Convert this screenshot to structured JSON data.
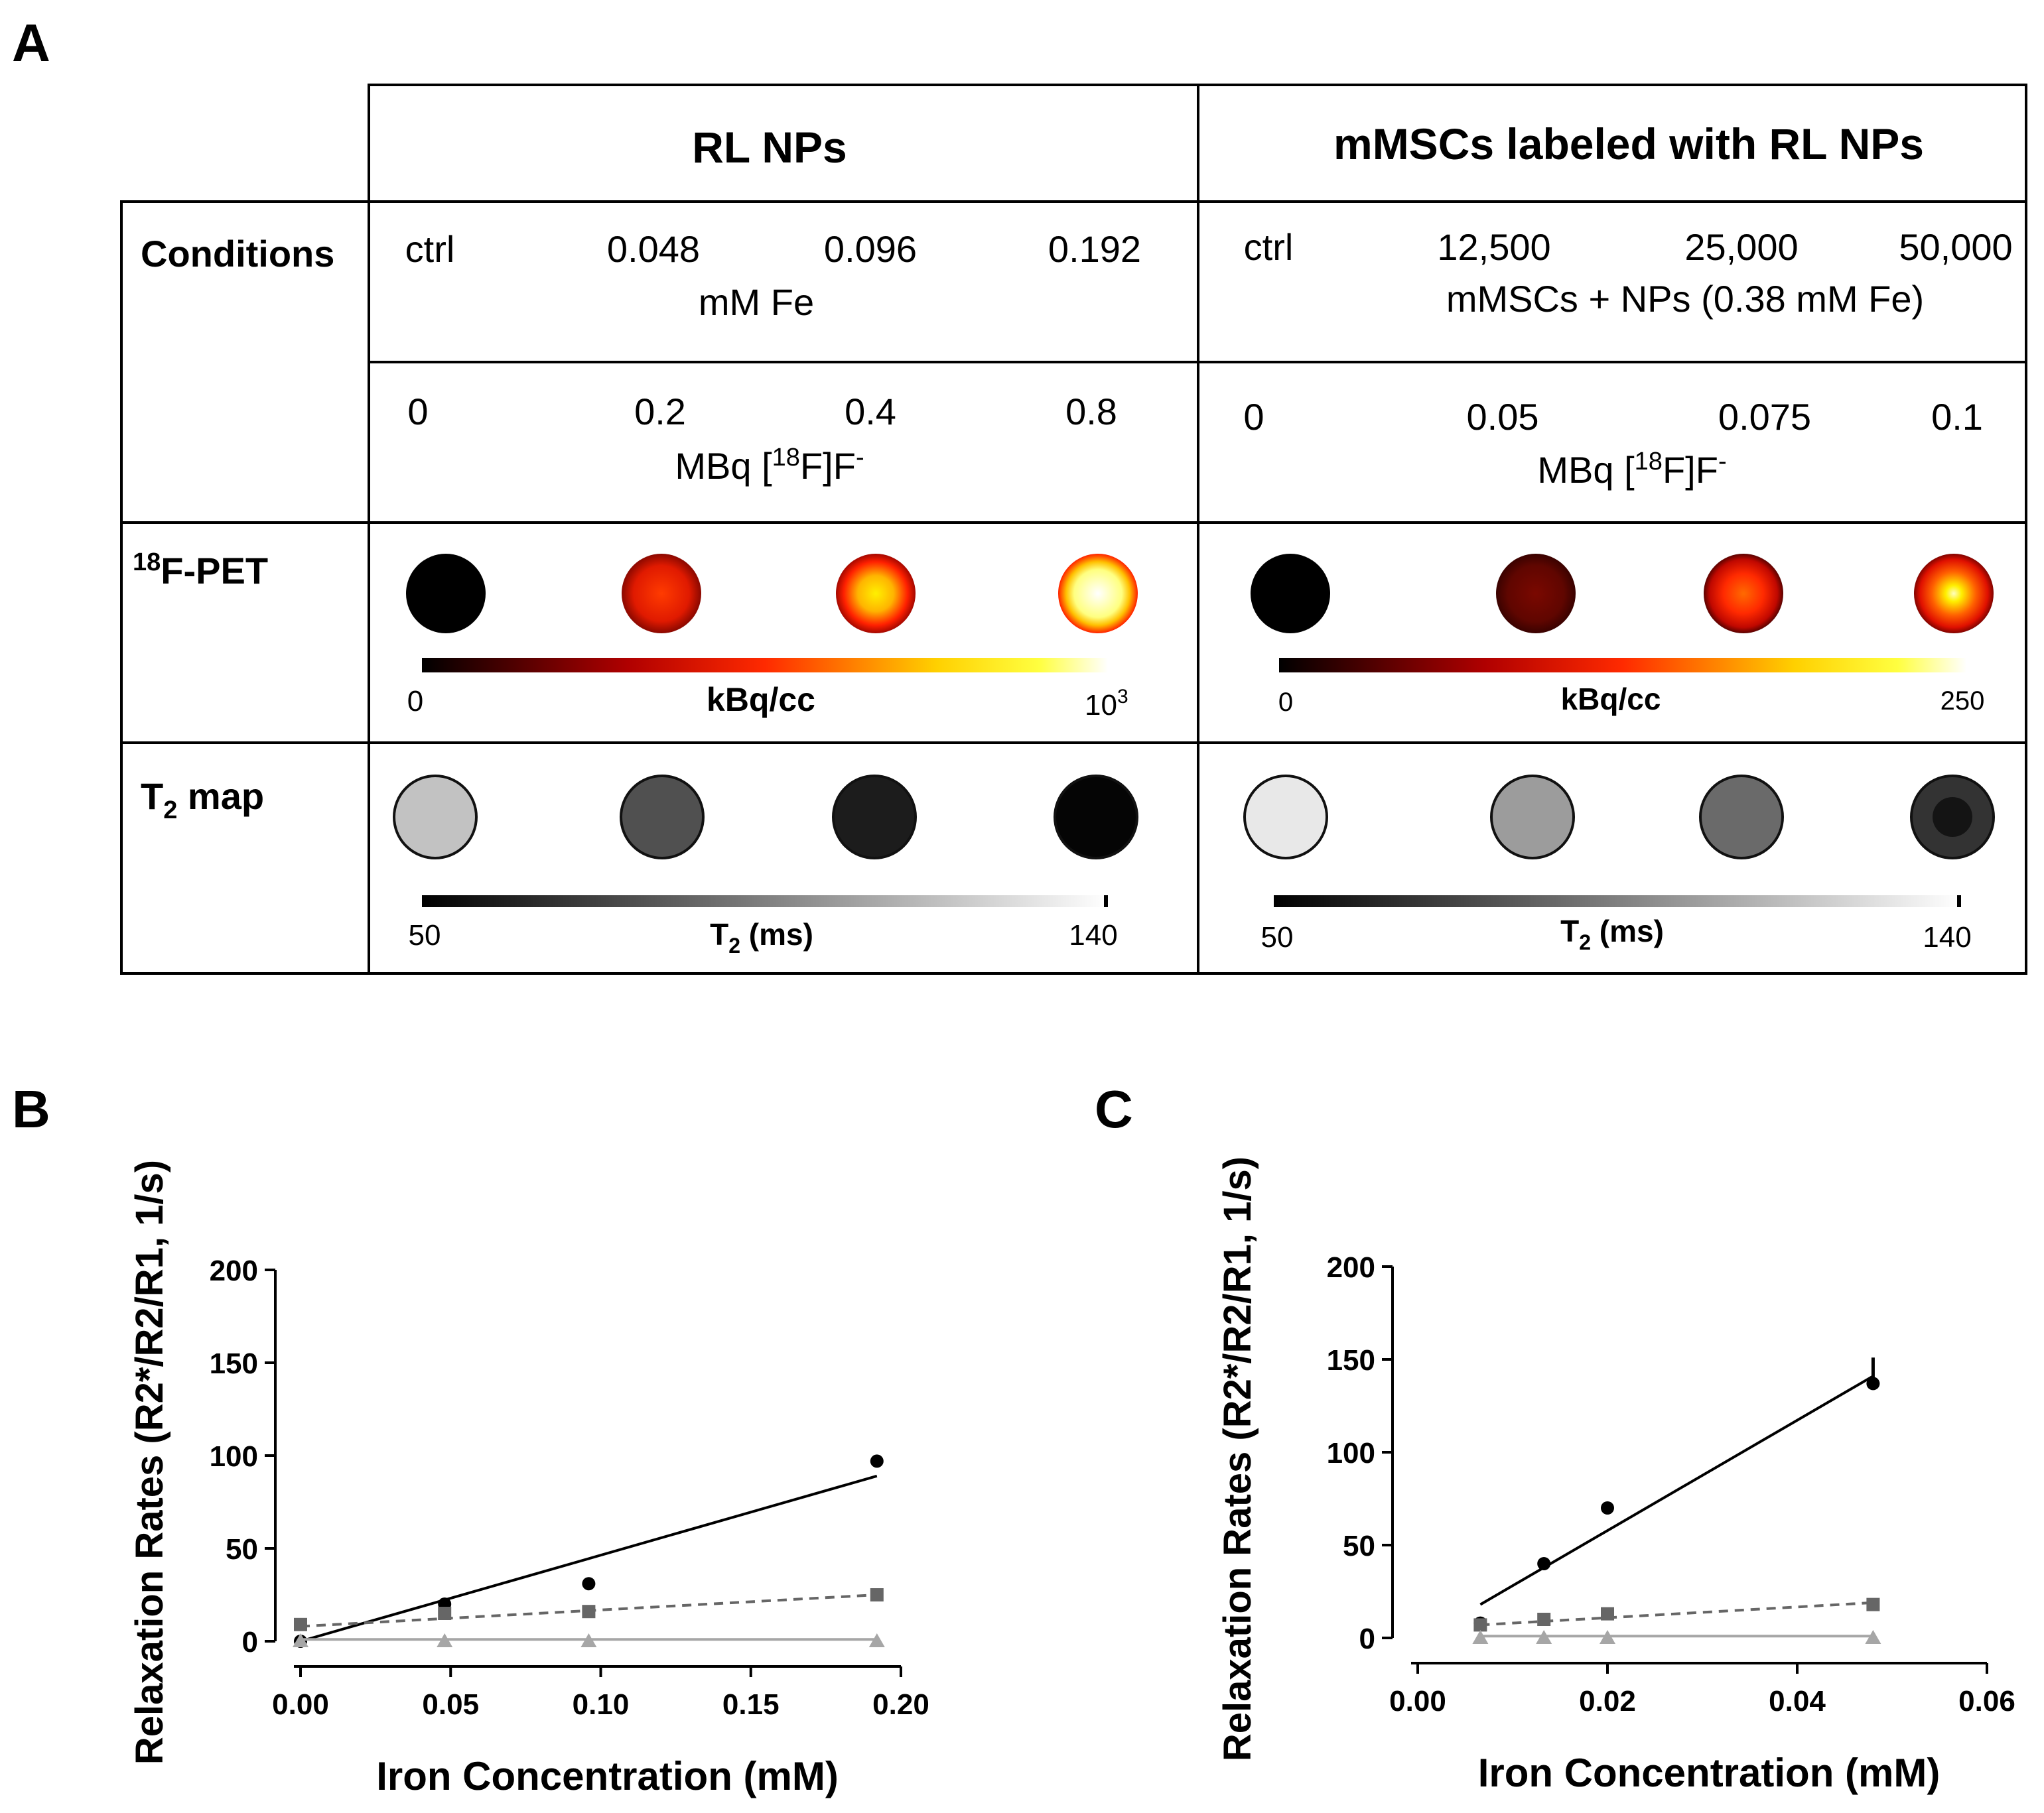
{
  "panel_labels": {
    "a": "A",
    "b": "B",
    "c": "C"
  },
  "table": {
    "col_headers": [
      "RL NPs",
      "mMSCs labeled with RL NPs"
    ],
    "row_labels": {
      "conditions": "Conditions",
      "pet": {
        "sup": "18",
        "main": "F-PET"
      },
      "t2": {
        "main": "T",
        "sub": "2",
        "rest": " map"
      }
    },
    "rl": {
      "values": [
        "ctrl",
        "0.048",
        "0.096",
        "0.192"
      ],
      "unit": "mM Fe",
      "activity": [
        "0",
        "0.2",
        "0.4",
        "0.8"
      ],
      "activity_unit": {
        "a": "MBq [",
        "sup": "18",
        "b": "F]F",
        "sup2": "-"
      },
      "pet_scale": {
        "min": "0",
        "label": "kBq/cc",
        "max": "10",
        "max_sup": "3"
      },
      "t2_scale": {
        "min": "50",
        "label": "T",
        "label_sub": "2",
        "label_rest": " (ms)",
        "max": "140"
      }
    },
    "mmsc": {
      "values": [
        "ctrl",
        "12,500",
        "25,000",
        "50,000"
      ],
      "unit": "mMSCs + NPs (0.38 mM Fe)",
      "activity": [
        "0",
        "0.05",
        "0.075",
        "0.1"
      ],
      "activity_unit": {
        "a": "MBq [",
        "sup": "18",
        "b": "F]F",
        "sup2": "-"
      },
      "pet_scale": {
        "min": "0",
        "label": "kBq/cc",
        "max": "250"
      },
      "t2_scale": {
        "min": "50",
        "label": "T",
        "label_sub": "2",
        "label_rest": " (ms)",
        "max": "140"
      }
    },
    "colors": {
      "black": "#000000",
      "dark_red": "#8b0000",
      "red": "#ff2000",
      "yellow": "#ffff00",
      "white": "#ffffff"
    }
  },
  "chart_data": [
    {
      "panel": "B",
      "type": "scatter",
      "xlabel": "Iron Concentration (mM)",
      "ylabel": "Relaxation Rates (R2*/R2/R1, 1/s)",
      "xlim": [
        0,
        0.2
      ],
      "ylim": [
        0,
        200
      ],
      "xticks": [
        "0.00",
        "0.05",
        "0.10",
        "0.15",
        "0.20"
      ],
      "yticks": [
        "0",
        "50",
        "100",
        "150",
        "200"
      ],
      "series": [
        {
          "name": "R2*",
          "marker": "circle",
          "color": "#000000",
          "x": [
            0,
            0.048,
            0.096,
            0.192
          ],
          "y": [
            0,
            20,
            31,
            97
          ],
          "fit": [
            [
              0,
              0
            ],
            [
              0.192,
              89
            ]
          ]
        },
        {
          "name": "R2",
          "marker": "square",
          "color": "#666666",
          "x": [
            0,
            0.048,
            0.096,
            0.192
          ],
          "y": [
            9,
            15,
            16,
            25
          ],
          "fit": [
            [
              0,
              8
            ],
            [
              0.192,
              25
            ]
          ],
          "dashed": true
        },
        {
          "name": "R1",
          "marker": "triangle",
          "color": "#a6a6a6",
          "x": [
            0,
            0.048,
            0.096,
            0.192
          ],
          "y": [
            0,
            0,
            0,
            0
          ],
          "fit": [
            [
              0,
              1
            ],
            [
              0.192,
              1
            ]
          ]
        }
      ]
    },
    {
      "panel": "C",
      "type": "scatter",
      "xlabel": "Iron Concentration (mM)",
      "ylabel": "Relaxation Rates (R2*/R2/R1, 1/s)",
      "xlim": [
        0,
        0.06
      ],
      "ylim": [
        0,
        200
      ],
      "xticks": [
        "0.00",
        "0.02",
        "0.04",
        "0.06"
      ],
      "yticks": [
        "0",
        "50",
        "100",
        "150",
        "200"
      ],
      "series": [
        {
          "name": "R2*",
          "marker": "circle",
          "color": "#000000",
          "x": [
            0.0066,
            0.0133,
            0.02,
            0.048
          ],
          "y": [
            8,
            40,
            70,
            137
          ],
          "fit": [
            [
              0.0066,
              18
            ],
            [
              0.048,
              141
            ]
          ],
          "err": [
            [
              0.048,
              151
            ]
          ]
        },
        {
          "name": "R2",
          "marker": "square",
          "color": "#666666",
          "x": [
            0.0066,
            0.0133,
            0.02,
            0.048
          ],
          "y": [
            7,
            10,
            13,
            18
          ],
          "fit": [
            [
              0.0066,
              7
            ],
            [
              0.048,
              19
            ]
          ],
          "dashed": true
        },
        {
          "name": "R1",
          "marker": "triangle",
          "color": "#a6a6a6",
          "x": [
            0.0066,
            0.0133,
            0.02,
            0.048
          ],
          "y": [
            0,
            0,
            0,
            0
          ],
          "fit": [
            [
              0.0066,
              1
            ],
            [
              0.048,
              1
            ]
          ]
        }
      ]
    }
  ]
}
